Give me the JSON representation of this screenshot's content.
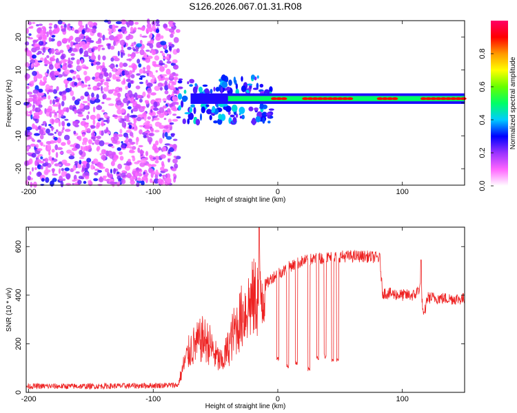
{
  "title": "S126.2026.067.01.31.R08",
  "chart_data": [
    {
      "type": "heatmap",
      "title": "S126.2026.067.01.31.R08",
      "xlabel": "Height of straight line (km)",
      "ylabel": "Frequency (Hz)",
      "xlim": [
        -202,
        150
      ],
      "ylim": [
        -25,
        25
      ],
      "xticks": [
        -200,
        -100,
        0,
        100
      ],
      "yticks": [
        -20,
        -10,
        0,
        10,
        20
      ],
      "colorbar": {
        "label": "Normalized spectral amplitude",
        "range": [
          0,
          1
        ],
        "ticks": [
          0.0,
          0.2,
          0.4,
          0.6,
          0.8
        ],
        "tick_labels": [
          "0.0",
          "0.2",
          "0.4",
          "0.6",
          "0.8"
        ],
        "colors": [
          "#ffffff",
          "#ff66ff",
          "#9933ff",
          "#0000ff",
          "#00ccff",
          "#00ff66",
          "#66ff00",
          "#ffff00",
          "#ff9900",
          "#ff0000",
          "#ff0066"
        ]
      },
      "description_points": {
        "noise_region_x": [
          -202,
          -80
        ],
        "signal_line_start_km": -70,
        "signal_frequency_hz": 1.3,
        "high_amplitude_segments_km": [
          [
            -5,
            5
          ],
          [
            20,
            60
          ],
          [
            80,
            95
          ],
          [
            115,
            150
          ]
        ]
      }
    },
    {
      "type": "line",
      "xlabel": "Height of straight line (km)",
      "ylabel": "SNR (10 * v/v)",
      "xlim": [
        -202,
        150
      ],
      "ylim": [
        0,
        680
      ],
      "xticks": [
        -200,
        -100,
        0,
        100
      ],
      "yticks": [
        0,
        200,
        400,
        600
      ],
      "series": [
        {
          "name": "SNR",
          "color": "#ee2222",
          "x": [
            -202,
            -150,
            -100,
            -80,
            -75,
            -70,
            -65,
            -60,
            -55,
            -50,
            -45,
            -40,
            -35,
            -30,
            -25,
            -20,
            -15,
            -12,
            -10,
            -5,
            0,
            5,
            10,
            20,
            30,
            40,
            50,
            60,
            70,
            80,
            82,
            84,
            100,
            110,
            115,
            117,
            120,
            140,
            150
          ],
          "y": [
            25,
            25,
            28,
            30,
            120,
            180,
            200,
            220,
            200,
            150,
            120,
            180,
            250,
            300,
            350,
            380,
            400,
            420,
            440,
            470,
            490,
            500,
            520,
            540,
            550,
            555,
            560,
            560,
            560,
            555,
            550,
            410,
            400,
            400,
            440,
            300,
            390,
            385,
            385
          ]
        }
      ],
      "dips": [
        {
          "x": 0,
          "y": 140
        },
        {
          "x": 8,
          "y": 110
        },
        {
          "x": 15,
          "y": 120
        },
        {
          "x": 25,
          "y": 95
        },
        {
          "x": 32,
          "y": 140
        },
        {
          "x": 38,
          "y": 150
        },
        {
          "x": 44,
          "y": 135
        },
        {
          "x": 48,
          "y": 130
        }
      ],
      "spikes": [
        {
          "x": -15,
          "y": 680
        },
        {
          "x": 115,
          "y": 545
        }
      ]
    }
  ]
}
